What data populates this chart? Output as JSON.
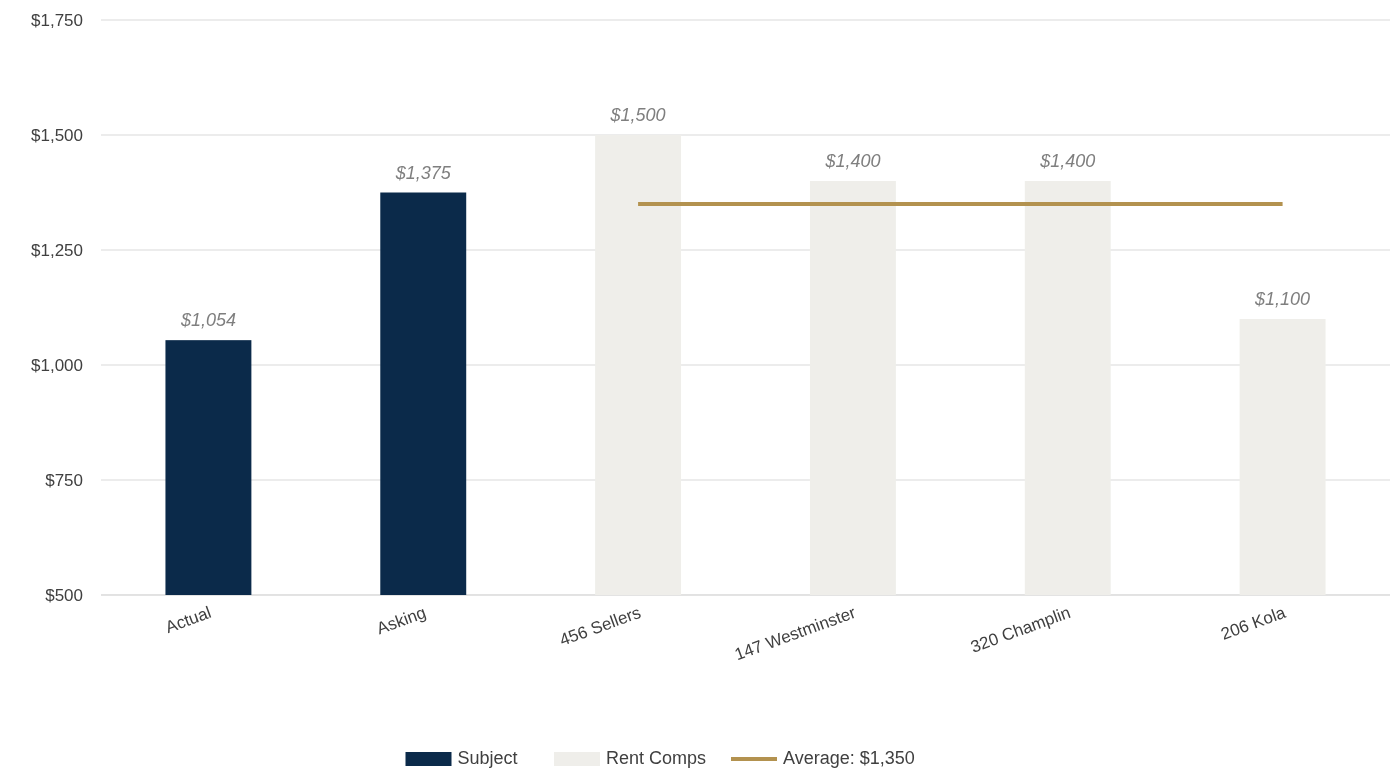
{
  "chart_data": {
    "type": "bar",
    "categories": [
      "Actual",
      "Asking",
      "456 Sellers",
      "147 Westminster",
      "320 Champlin",
      "206 Kola"
    ],
    "series": [
      {
        "name": "Subject",
        "color": "#0b2a4a",
        "values": [
          1054,
          1375,
          null,
          null,
          null,
          null
        ]
      },
      {
        "name": "Rent Comps",
        "color": "#efeeea",
        "values": [
          null,
          null,
          1500,
          1400,
          1400,
          1100
        ]
      },
      {
        "name": "Average: $1,350",
        "type": "line",
        "color": "#b3924f",
        "values": [
          null,
          null,
          1350,
          1350,
          1350,
          1350
        ]
      }
    ],
    "ylim": [
      500,
      1750
    ],
    "yticks": [
      {
        "value": 500,
        "label": "$500"
      },
      {
        "value": 750,
        "label": "$750"
      },
      {
        "value": 1000,
        "label": "$1,000"
      },
      {
        "value": 1250,
        "label": "$1,250"
      },
      {
        "value": 1500,
        "label": "$1,500"
      },
      {
        "value": 1750,
        "label": "$1,750"
      }
    ],
    "value_labels": [
      "$1,054",
      "$1,375",
      "$1,500",
      "$1,400",
      "$1,400",
      "$1,100"
    ],
    "grid": "y",
    "legend": "bottom",
    "marker": "none",
    "line_style": "solid"
  }
}
